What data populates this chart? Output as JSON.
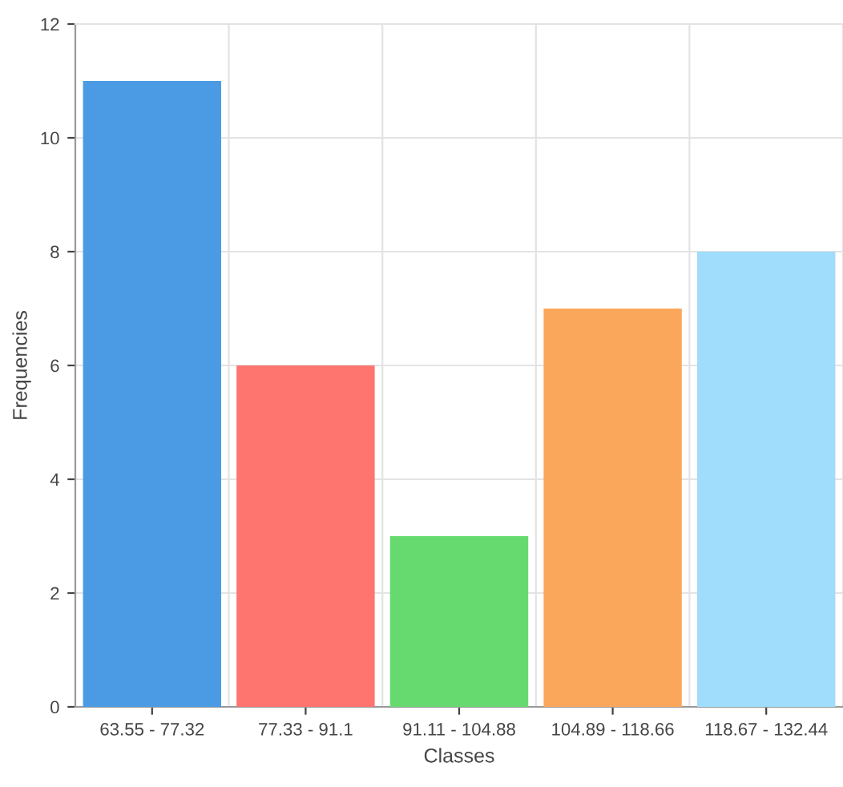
{
  "chart_data": {
    "type": "bar",
    "xlabel": "Classes",
    "ylabel": "Frequencies",
    "categories": [
      "63.55 - 77.32",
      "77.33 - 91.1",
      "91.11 - 104.88",
      "104.89 - 118.66",
      "118.67 - 132.44"
    ],
    "values": [
      11,
      6,
      3,
      7,
      8
    ],
    "colors": [
      "#4a9be3",
      "#fe7570",
      "#66d96f",
      "#fba75b",
      "#a0dcfb"
    ],
    "ylim": [
      0,
      12
    ],
    "yticks": [
      0,
      2,
      4,
      6,
      8,
      10,
      12
    ],
    "grid": true
  }
}
